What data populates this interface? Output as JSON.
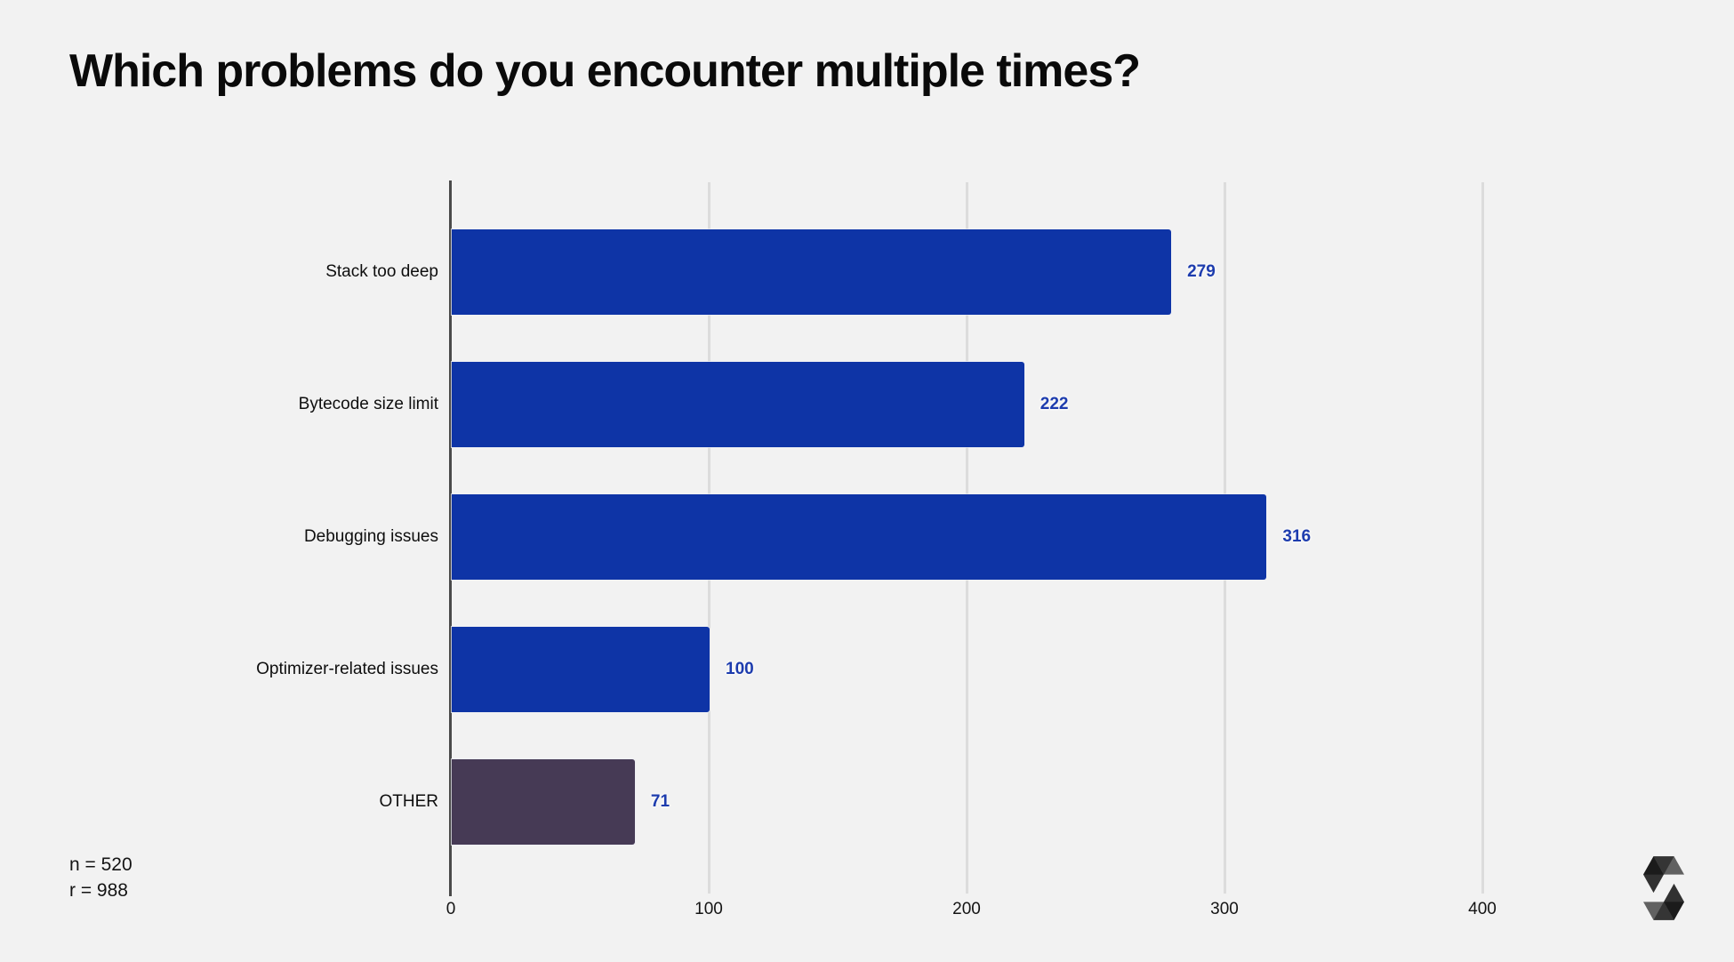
{
  "title": "Which problems do you encounter multiple times?",
  "footnote": {
    "n_label": "n = 520",
    "r_label": "r = 988"
  },
  "logo": {
    "name": "solidity-logo"
  },
  "colors": {
    "background": "#f2f2f2",
    "bar_primary": "#0e34a6",
    "bar_other": "#463a55",
    "value_label": "#1d3cae",
    "gridline": "#dcdcdc",
    "axis_line": "#4a4a4a",
    "text": "#111111"
  },
  "chart_data": {
    "type": "bar",
    "orientation": "horizontal",
    "title": "Which problems do you encounter multiple times?",
    "categories": [
      "Stack too deep",
      "Bytecode size limit",
      "Debugging issues",
      "Optimizer-related issues",
      "OTHER"
    ],
    "values": [
      279,
      222,
      316,
      100,
      71
    ],
    "bar_colors": [
      "#0e34a6",
      "#0e34a6",
      "#0e34a6",
      "#0e34a6",
      "#463a55"
    ],
    "value_labels": [
      "279",
      "222",
      "316",
      "100",
      "71"
    ],
    "xlabel": "",
    "ylabel": "",
    "xlim": [
      0,
      450
    ],
    "x_ticks": [
      0,
      100,
      200,
      300,
      400
    ],
    "x_tick_labels": [
      "0",
      "100",
      "200",
      "300",
      "400"
    ],
    "grid": "vertical-gridlines",
    "legend": "none",
    "value_labels_shown": true
  }
}
